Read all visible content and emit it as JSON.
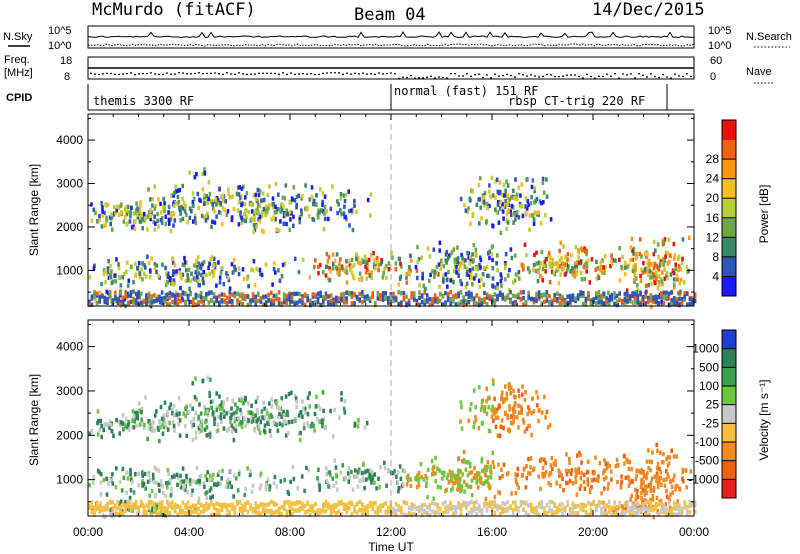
{
  "header": {
    "station": "McMurdo (fitACF)",
    "beam": "Beam 04",
    "date": "14/Dec/2015"
  },
  "noise_panel": {
    "left_label": "N.Sky",
    "right_label": "N.Search",
    "y_ticks": [
      "10^5",
      "10^0"
    ]
  },
  "freq_panel": {
    "left_label_1": "Freq.",
    "left_label_2": "[MHz]",
    "left_ticks": [
      "18",
      "8"
    ],
    "right_label": "Nave",
    "right_ticks": [
      "60",
      "0"
    ]
  },
  "cpid_panel": {
    "label": "CPID",
    "segments": [
      "themis 3300 RF",
      "normal (fast) 151 RF",
      "rbsp CT-trig 220 RF"
    ]
  },
  "chart_data": [
    {
      "type": "heatmap",
      "name": "power",
      "ylabel": "Slant Range [km]",
      "xlabel": "",
      "x_ticks": [
        "00:00",
        "04:00",
        "08:00",
        "12:00",
        "16:00",
        "20:00",
        "00:00"
      ],
      "x_range_hours": [
        0,
        24
      ],
      "ylim": [
        180,
        4600
      ],
      "y_ticks": [
        1000,
        2000,
        3000,
        4000
      ],
      "colorbar": {
        "label": "Power [dB]",
        "ticks": [
          "4",
          "8",
          "12",
          "16",
          "20",
          "24",
          "28"
        ],
        "colors": [
          "#1a1aff",
          "#2f55b8",
          "#3a8a6a",
          "#6aa84a",
          "#b8d038",
          "#f0c020",
          "#f79a10",
          "#f26010",
          "#e81010"
        ]
      }
    },
    {
      "type": "heatmap",
      "name": "velocity",
      "ylabel": "Slant Range [km]",
      "xlabel": "Time UT",
      "x_ticks": [
        "00:00",
        "04:00",
        "08:00",
        "12:00",
        "16:00",
        "20:00",
        "00:00"
      ],
      "x_range_hours": [
        0,
        24
      ],
      "ylim": [
        180,
        4600
      ],
      "y_ticks": [
        1000,
        2000,
        3000,
        4000
      ],
      "colorbar": {
        "label": "Velocity [m s⁻¹]",
        "ticks": [
          "1000",
          "500",
          "100",
          "25",
          "-25",
          "-100",
          "-500",
          "-1000"
        ],
        "colors": [
          "#1c3fcf",
          "#2f7f5a",
          "#3aa24a",
          "#6cc83c",
          "#c8c8c8",
          "#f5c040",
          "#f28a20",
          "#f06010",
          "#e52020"
        ]
      }
    }
  ]
}
